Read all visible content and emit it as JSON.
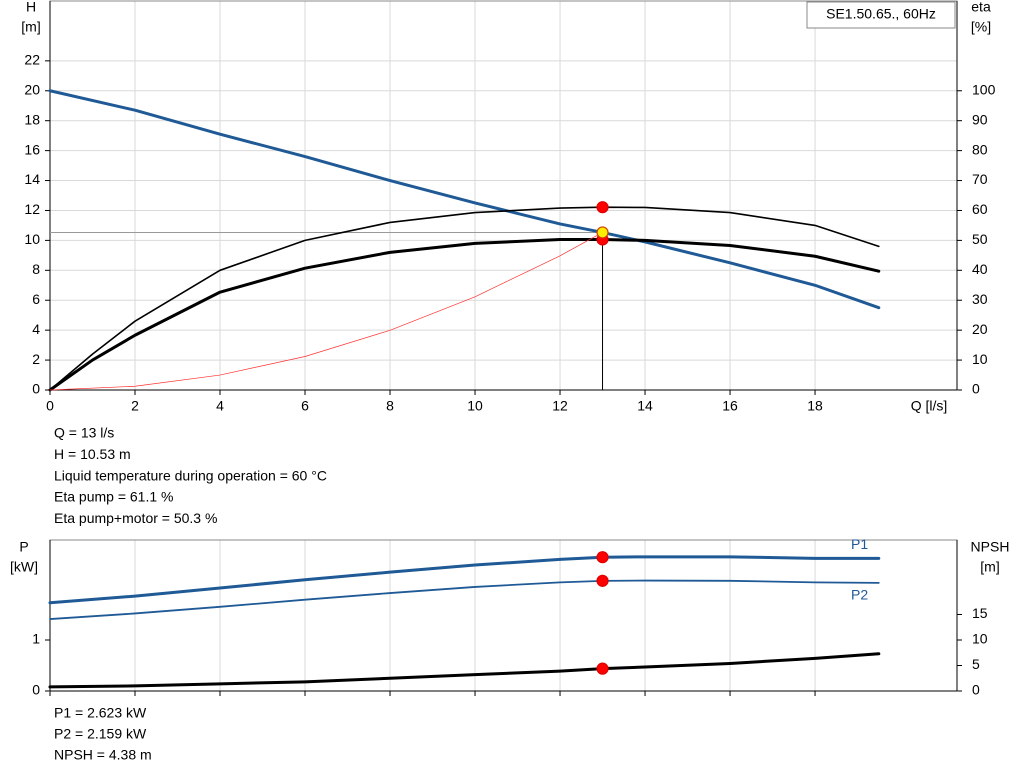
{
  "chart_data": [
    {
      "type": "line",
      "title": "SE1.50.65., 60Hz",
      "xlabel": "Q [l/s]",
      "ylabel": "H",
      "yunit": "[m]",
      "y2label": "eta",
      "y2unit": "[%]",
      "xlim": [
        0,
        21.34
      ],
      "xticks": [
        0,
        2,
        4,
        6,
        8,
        10,
        12,
        14,
        16,
        18
      ],
      "ylim": [
        0,
        26
      ],
      "yticks": [
        0,
        2,
        4,
        6,
        8,
        10,
        12,
        14,
        16,
        18,
        20,
        22
      ],
      "y2lim": [
        0,
        130
      ],
      "y2ticks": [
        0,
        10,
        20,
        30,
        40,
        50,
        60,
        70,
        80,
        90,
        100
      ],
      "grid": "both",
      "series": [
        {
          "color": "#1f5a96",
          "linewidth": 3,
          "axis": "y",
          "x": [
            0,
            2,
            4,
            6,
            8,
            10,
            12,
            13,
            14,
            16,
            18,
            19.5
          ],
          "values": [
            20,
            18.7,
            17.1,
            15.6,
            14.0,
            12.5,
            11.1,
            10.53,
            9.9,
            8.5,
            7.0,
            5.5
          ]
        },
        {
          "color": "#000000",
          "linewidth": 1.6,
          "axis": "y2",
          "x": [
            0,
            1,
            2,
            4,
            6,
            8,
            10,
            12,
            13,
            14,
            16,
            18,
            19.5
          ],
          "values": [
            0,
            12,
            23,
            40,
            50,
            56,
            59.3,
            60.8,
            61.1,
            61,
            59.3,
            55,
            48
          ]
        },
        {
          "color": "#000000",
          "linewidth": 3,
          "axis": "y2",
          "x": [
            0,
            1,
            2,
            4,
            6,
            8,
            10,
            12,
            13,
            14,
            16,
            18,
            19.5
          ],
          "values": [
            0,
            10,
            18.3,
            32.7,
            40.7,
            46,
            49,
            50.3,
            50.3,
            50,
            48.3,
            44.7,
            39.7
          ]
        },
        {
          "color": "#ff3030",
          "linewidth": 0.7,
          "axis": "y",
          "x": [
            0,
            2,
            4,
            6,
            8,
            10,
            12,
            13
          ],
          "values": [
            0,
            0.25,
            1.0,
            2.24,
            3.99,
            6.23,
            8.97,
            10.53
          ]
        }
      ],
      "points": [
        {
          "x": 13,
          "y": 61.1,
          "axis": "y2",
          "color": "#ff0000"
        },
        {
          "x": 13,
          "y": 50.3,
          "axis": "y2",
          "color": "#ff0000"
        },
        {
          "x": 13,
          "y": 10.53,
          "axis": "y",
          "color": "#ffee00"
        }
      ]
    },
    {
      "type": "line",
      "ylabel": "P",
      "yunit": "[kW]",
      "y2label": "NPSH",
      "y2unit": "[m]",
      "xlim": [
        0,
        21.34
      ],
      "xticks": [
        0,
        2,
        4,
        6,
        8,
        10,
        12,
        14,
        16,
        18
      ],
      "ylim": [
        0,
        2.96
      ],
      "yticks": [
        0,
        1
      ],
      "y2lim": [
        0,
        29.6
      ],
      "y2ticks": [
        0,
        5,
        10,
        15
      ],
      "grid": "x",
      "series": [
        {
          "name": "P1",
          "color": "#1f5a96",
          "linewidth": 3,
          "axis": "y",
          "x": [
            0,
            2,
            4,
            6,
            8,
            10,
            12,
            13,
            14,
            16,
            18,
            19.5
          ],
          "values": [
            1.73,
            1.86,
            2.02,
            2.18,
            2.33,
            2.47,
            2.58,
            2.623,
            2.63,
            2.63,
            2.6,
            2.6
          ]
        },
        {
          "name": "P2",
          "color": "#1f5a96",
          "linewidth": 1.8,
          "axis": "y",
          "x": [
            0,
            2,
            4,
            6,
            8,
            10,
            12,
            13,
            14,
            16,
            18,
            19.5
          ],
          "values": [
            1.41,
            1.52,
            1.65,
            1.79,
            1.92,
            2.04,
            2.13,
            2.159,
            2.165,
            2.16,
            2.13,
            2.12
          ]
        },
        {
          "color": "#000000",
          "linewidth": 3,
          "axis": "y2",
          "x": [
            0,
            2,
            4,
            6,
            8,
            10,
            12,
            13,
            14,
            16,
            18,
            19.5
          ],
          "values": [
            0.8,
            1.0,
            1.4,
            1.8,
            2.5,
            3.2,
            3.9,
            4.38,
            4.7,
            5.4,
            6.4,
            7.3
          ]
        }
      ],
      "points": [
        {
          "x": 13,
          "y": 2.623,
          "axis": "y",
          "color": "#ff0000"
        },
        {
          "x": 13,
          "y": 2.159,
          "axis": "y",
          "color": "#ff0000"
        },
        {
          "x": 13,
          "y": 4.38,
          "axis": "y2",
          "color": "#ff0000"
        }
      ]
    }
  ],
  "readout_top": [
    "Q = 13 l/s",
    "H = 10.53 m",
    "Liquid temperature during operation = 60 °C",
    "Eta pump = 61.1 %",
    "Eta pump+motor = 50.3 %"
  ],
  "readout_bottom": [
    "P1 = 2.623 kW",
    "P2 = 2.159 kW",
    "NPSH = 4.38 m"
  ]
}
